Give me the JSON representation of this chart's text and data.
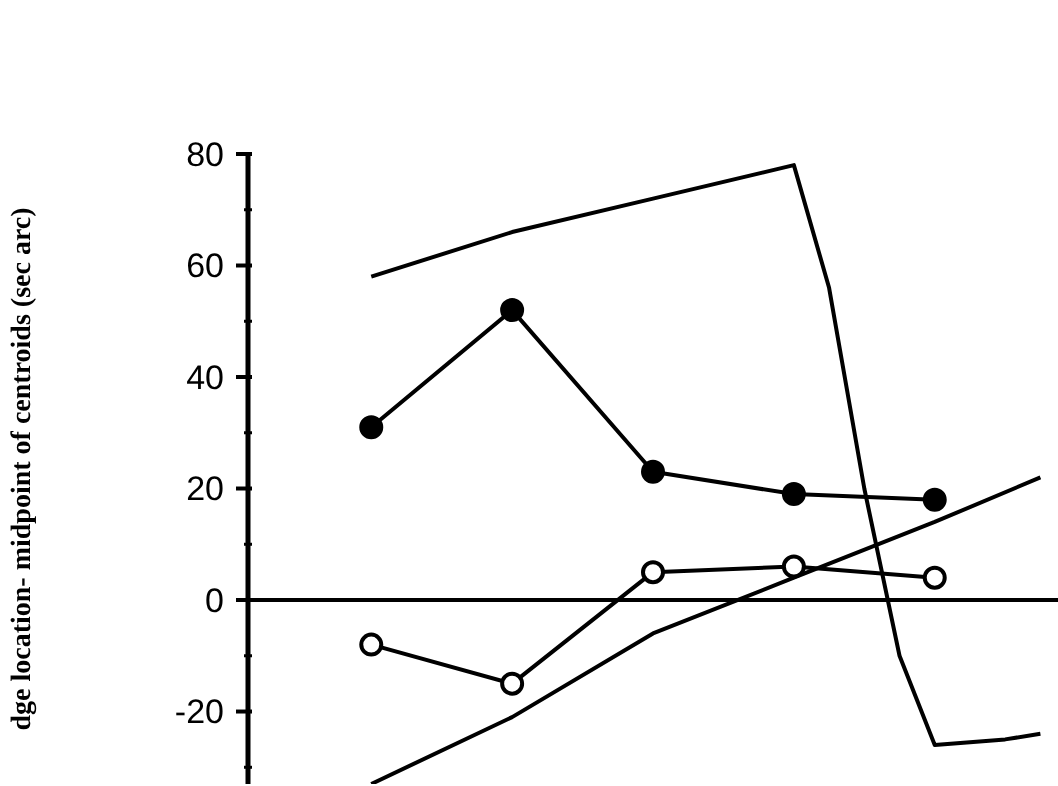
{
  "chart_data": {
    "type": "line",
    "ylabel": "dge location- midpoint of centroids (sec arc)",
    "categories": [
      null,
      null,
      null,
      null,
      null,
      null,
      null,
      null,
      null,
      null,
      null,
      null,
      null,
      null,
      null,
      null,
      null,
      null,
      null,
      null,
      null,
      null,
      null
    ],
    "ylim": [
      -33,
      80
    ],
    "yticks": [
      {
        "value": -30,
        "label": null
      },
      -20,
      {
        "value": -10,
        "label": null
      },
      0,
      {
        "value": 10,
        "label": null
      },
      20,
      {
        "value": 30,
        "label": null
      },
      40,
      {
        "value": 50,
        "label": null
      },
      60,
      {
        "value": 70,
        "label": null
      },
      80
    ],
    "tick_labels": "y",
    "line_style": "solid",
    "ref_lines": [
      {
        "axis": "y",
        "value": 0,
        "color": "#000000"
      }
    ],
    "series": [
      {
        "color": "#000000",
        "marker": "circle",
        "values": [
          null,
          null,
          null,
          31,
          null,
          null,
          null,
          52,
          null,
          null,
          null,
          23,
          null,
          null,
          null,
          19,
          null,
          null,
          null,
          18,
          null,
          null,
          null
        ]
      },
      {
        "color": "#000000",
        "marker": "circle",
        "colors": [
          null,
          null,
          null,
          "#ffffff",
          null,
          null,
          null,
          "#ffffff",
          null,
          null,
          null,
          "#ffffff",
          null,
          null,
          null,
          "#ffffff",
          null,
          null,
          null,
          "#ffffff",
          null,
          null,
          null
        ],
        "values": [
          null,
          null,
          null,
          -8,
          null,
          null,
          null,
          -15,
          null,
          null,
          null,
          5,
          null,
          null,
          null,
          6,
          null,
          null,
          null,
          4,
          null,
          null,
          null
        ]
      },
      {
        "color": "#000000",
        "marker": "none",
        "values": [
          null,
          null,
          null,
          58,
          null,
          null,
          null,
          66,
          null,
          null,
          null,
          72,
          null,
          null,
          null,
          78,
          56,
          20,
          -10,
          -26,
          -25.5,
          -25,
          -24
        ]
      },
      {
        "color": "#000000",
        "marker": "none",
        "values": [
          null,
          null,
          null,
          -33,
          null,
          null,
          null,
          -21,
          null,
          null,
          null,
          -6,
          null,
          null,
          null,
          4,
          null,
          null,
          null,
          14,
          null,
          null,
          22
        ]
      }
    ]
  }
}
